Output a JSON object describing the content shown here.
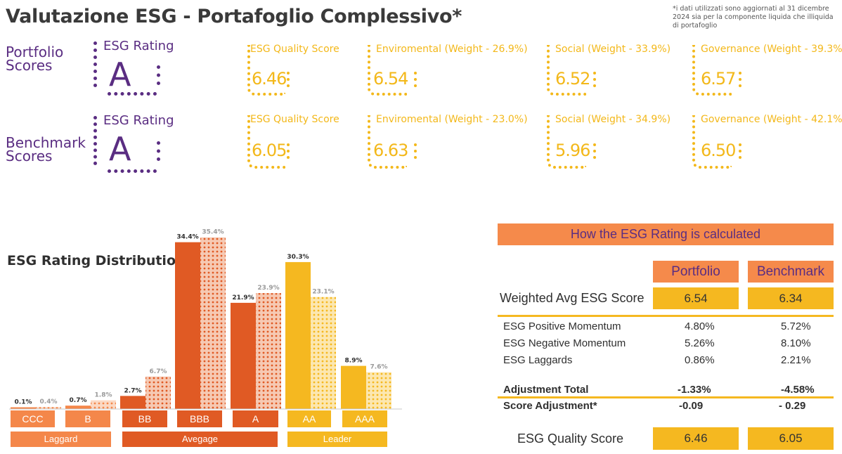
{
  "header": {
    "title": "Valutazione ESG - Portafoglio Complessivo*",
    "note": "*i dati utilizzati sono aggiornati al 31 dicembre 2024 sia per la componente liquida che illiquida di portafoglio"
  },
  "portfolio_scores": {
    "label_line1": "Portfolio",
    "label_line2": "Scores",
    "rating_caption": "ESG Rating",
    "rating": "A",
    "quality_caption": "ESG Quality Score",
    "quality_value": "6.46",
    "env_caption": "Enviromental (Weight - 26.9%)",
    "env_value": "6.54",
    "social_caption": "Social (Weight - 33.9%)",
    "social_value": "6.52",
    "gov_caption": "Governance (Weight - 39.3%)",
    "gov_value": "6.57"
  },
  "benchmark_scores": {
    "label_line1": "Benchmark",
    "label_line2": "Scores",
    "rating_caption": "ESG Rating",
    "rating": "A",
    "quality_caption": "ESG Quality Score",
    "quality_value": "6.05",
    "env_caption": "Enviromental (Weight - 23.0%)",
    "env_value": "6.63",
    "social_caption": "Social (Weight - 34.9%)",
    "social_value": "5.96",
    "gov_caption": "Governance (Weight - 42.1%)",
    "gov_value": "6.50"
  },
  "colors": {
    "purple": "#5a2d82",
    "yellow": "#f3b81a",
    "orange_light": "#f58a4b",
    "orange_dark": "#e05a24",
    "laggard": "#f4874a",
    "average": "#e05a24",
    "leader": "#f5b820"
  },
  "chart_data": {
    "type": "bar",
    "title": "ESG Rating Distribution",
    "categories": [
      "CCC",
      "B",
      "BB",
      "BBB",
      "A",
      "AA",
      "AAA"
    ],
    "series": [
      {
        "values": [
          0.1,
          0.7,
          2.7,
          34.4,
          21.9,
          30.3,
          8.9
        ],
        "labels": [
          "0.1%",
          "0.7%",
          "2.7%",
          "34.4%",
          "21.9%",
          "30.3%",
          "8.9%"
        ]
      },
      {
        "values": [
          0.4,
          1.8,
          6.7,
          35.4,
          23.9,
          23.1,
          7.6
        ],
        "labels": [
          "0.4%",
          "1.8%",
          "6.7%",
          "35.4%",
          "23.9%",
          "23.1%",
          "7.6%"
        ]
      }
    ],
    "category_colors": [
      "#f4874a",
      "#f4874a",
      "#e05a24",
      "#e05a24",
      "#e05a24",
      "#f5b820",
      "#f5b820"
    ],
    "groups": [
      {
        "label": "Laggard",
        "categories": [
          "CCC",
          "B"
        ]
      },
      {
        "label": "Avegage",
        "categories": [
          "BB",
          "BBB",
          "A"
        ]
      },
      {
        "label": "Leader",
        "categories": [
          "AA",
          "AAA"
        ]
      }
    ],
    "ylim": [
      0,
      36
    ],
    "grid": false
  },
  "calc_table": {
    "title": "How the ESG Rating is calculated",
    "col_portfolio": "Portfolio",
    "col_benchmark": "Benchmark",
    "weighted_label": "Weighted Avg ESG Score",
    "weighted_portfolio": "6.54",
    "weighted_benchmark": "6.34",
    "rows": [
      {
        "label": "ESG Positive Momentum",
        "portfolio": "4.80%",
        "benchmark": "5.72%"
      },
      {
        "label": "ESG Negative Momentum",
        "portfolio": "5.26%",
        "benchmark": "8.10%"
      },
      {
        "label": "ESG Laggards",
        "portfolio": "0.86%",
        "benchmark": "2.21%"
      }
    ],
    "adjustment_total_label": "Adjustment Total",
    "adjustment_total_portfolio": "-1.33%",
    "adjustment_total_benchmark": "-4.58%",
    "score_adjustment_label": "Score Adjustment*",
    "score_adjustment_portfolio": "-0.09",
    "score_adjustment_benchmark": "- 0.29",
    "quality_label": "ESG Quality Score",
    "quality_portfolio": "6.46",
    "quality_benchmark": "6.05"
  }
}
